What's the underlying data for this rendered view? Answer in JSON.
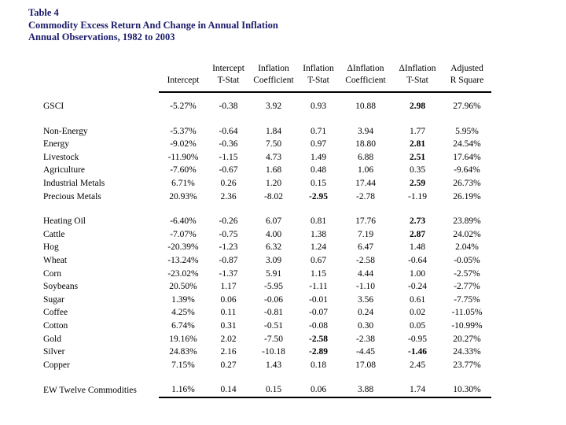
{
  "title": {
    "line1": "Table 4",
    "line2": "Commodity Excess Return And Change in Annual Inflation",
    "line3": "Annual Observations, 1982 to 2003"
  },
  "colors": {
    "title_text": "#1b1b6b",
    "table_text": "#000000",
    "rule": "#000000",
    "background": "#ffffff"
  },
  "table": {
    "header": [
      {
        "top": "",
        "bottom": "Intercept"
      },
      {
        "top": "Intercept",
        "bottom": "T-Stat"
      },
      {
        "top": "Inflation",
        "bottom": "Coefficient"
      },
      {
        "top": "Inflation",
        "bottom": "T-Stat"
      },
      {
        "top": "ΔInflation",
        "bottom": "Coefficient"
      },
      {
        "top": "ΔInflation",
        "bottom": "T-Stat"
      },
      {
        "top": "Adjusted",
        "bottom": "R Square"
      }
    ],
    "groups": [
      {
        "rows": [
          {
            "label": "GSCI",
            "values": [
              "-5.27%",
              "-0.38",
              "3.92",
              "0.93",
              "10.88",
              "2.98",
              "27.96%"
            ],
            "bold": [
              5
            ]
          }
        ]
      },
      {
        "rows": [
          {
            "label": "Non-Energy",
            "values": [
              "-5.37%",
              "-0.64",
              "1.84",
              "0.71",
              "3.94",
              "1.77",
              "5.95%"
            ],
            "bold": []
          },
          {
            "label": "Energy",
            "values": [
              "-9.02%",
              "-0.36",
              "7.50",
              "0.97",
              "18.80",
              "2.81",
              "24.54%"
            ],
            "bold": [
              5
            ]
          },
          {
            "label": "Livestock",
            "values": [
              "-11.90%",
              "-1.15",
              "4.73",
              "1.49",
              "6.88",
              "2.51",
              "17.64%"
            ],
            "bold": [
              5
            ]
          },
          {
            "label": "Agriculture",
            "values": [
              "-7.60%",
              "-0.67",
              "1.68",
              "0.48",
              "1.06",
              "0.35",
              "-9.64%"
            ],
            "bold": []
          },
          {
            "label": "Industrial Metals",
            "values": [
              "6.71%",
              "0.26",
              "1.20",
              "0.15",
              "17.44",
              "2.59",
              "26.73%"
            ],
            "bold": [
              5
            ]
          },
          {
            "label": "Precious Metals",
            "values": [
              "20.93%",
              "2.36",
              "-8.02",
              "-2.95",
              "-2.78",
              "-1.19",
              "26.19%"
            ],
            "bold": [
              3
            ]
          }
        ]
      },
      {
        "rows": [
          {
            "label": "Heating Oil",
            "values": [
              "-6.40%",
              "-0.26",
              "6.07",
              "0.81",
              "17.76",
              "2.73",
              "23.89%"
            ],
            "bold": [
              5
            ]
          },
          {
            "label": "Cattle",
            "values": [
              "-7.07%",
              "-0.75",
              "4.00",
              "1.38",
              "7.19",
              "2.87",
              "24.02%"
            ],
            "bold": [
              5
            ]
          },
          {
            "label": "Hog",
            "values": [
              "-20.39%",
              "-1.23",
              "6.32",
              "1.24",
              "6.47",
              "1.48",
              "2.04%"
            ],
            "bold": []
          },
          {
            "label": "Wheat",
            "values": [
              "-13.24%",
              "-0.87",
              "3.09",
              "0.67",
              "-2.58",
              "-0.64",
              "-0.05%"
            ],
            "bold": []
          },
          {
            "label": "Corn",
            "values": [
              "-23.02%",
              "-1.37",
              "5.91",
              "1.15",
              "4.44",
              "1.00",
              "-2.57%"
            ],
            "bold": []
          },
          {
            "label": "Soybeans",
            "values": [
              "20.50%",
              "1.17",
              "-5.95",
              "-1.11",
              "-1.10",
              "-0.24",
              "-2.77%"
            ],
            "bold": []
          },
          {
            "label": "Sugar",
            "values": [
              "1.39%",
              "0.06",
              "-0.06",
              "-0.01",
              "3.56",
              "0.61",
              "-7.75%"
            ],
            "bold": []
          },
          {
            "label": "Coffee",
            "values": [
              "4.25%",
              "0.11",
              "-0.81",
              "-0.07",
              "0.24",
              "0.02",
              "-11.05%"
            ],
            "bold": []
          },
          {
            "label": "Cotton",
            "values": [
              "6.74%",
              "0.31",
              "-0.51",
              "-0.08",
              "0.30",
              "0.05",
              "-10.99%"
            ],
            "bold": []
          },
          {
            "label": "Gold",
            "values": [
              "19.16%",
              "2.02",
              "-7.50",
              "-2.58",
              "-2.38",
              "-0.95",
              "20.27%"
            ],
            "bold": [
              3
            ]
          },
          {
            "label": "Silver",
            "values": [
              "24.83%",
              "2.16",
              "-10.18",
              "-2.89",
              "-4.45",
              "-1.46",
              "24.33%"
            ],
            "bold": [
              3,
              5
            ]
          },
          {
            "label": "Copper",
            "values": [
              "7.15%",
              "0.27",
              "1.43",
              "0.18",
              "17.08",
              "2.45",
              "23.77%"
            ],
            "bold": []
          }
        ]
      },
      {
        "rows": [
          {
            "label": "EW Twelve Commodities",
            "values": [
              "1.16%",
              "0.14",
              "0.15",
              "0.06",
              "3.88",
              "1.74",
              "10.30%"
            ],
            "bold": []
          }
        ]
      }
    ]
  }
}
